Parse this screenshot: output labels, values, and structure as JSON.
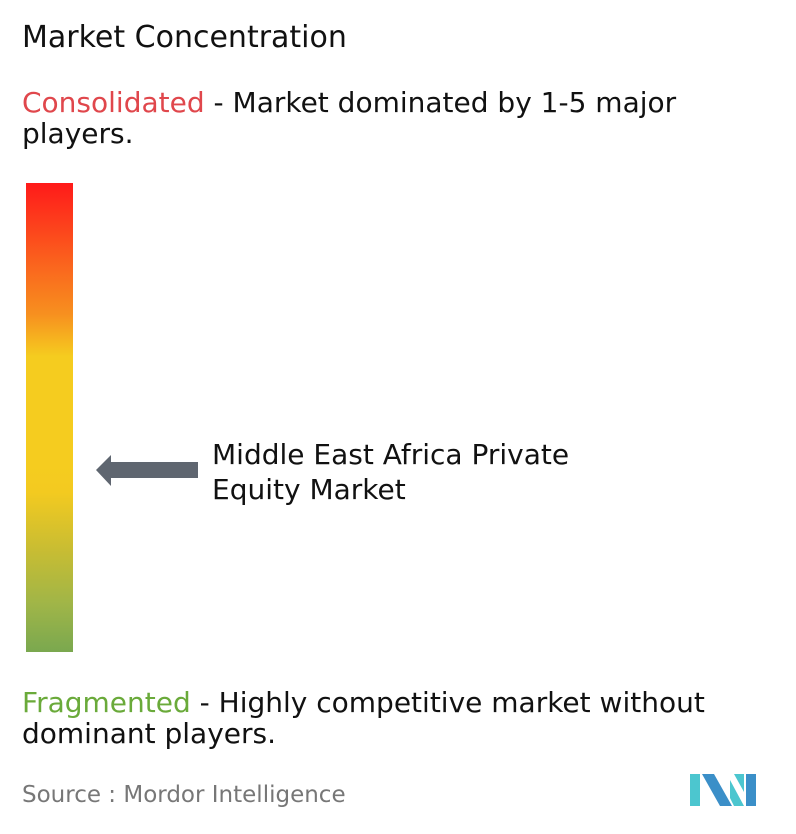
{
  "title": "Market Concentration",
  "consolidated": {
    "label": "Consolidated",
    "description": " - Market dominated by 1-5 major players.",
    "color": "#e0474c"
  },
  "fragmented": {
    "label": "Fragmented",
    "description": " - Highly competitive market without dominant players.",
    "color": "#6aaa3a"
  },
  "marker": {
    "label": "Middle East Africa Private Equity Market",
    "arrow_color": "#5f6670",
    "level_fraction_from_fragmented": 0.39
  },
  "source": "Source :  Mordor Intelligence",
  "logo": {
    "text": "MI",
    "colors": [
      "#3b8fc8",
      "#4cc6cf"
    ]
  }
}
